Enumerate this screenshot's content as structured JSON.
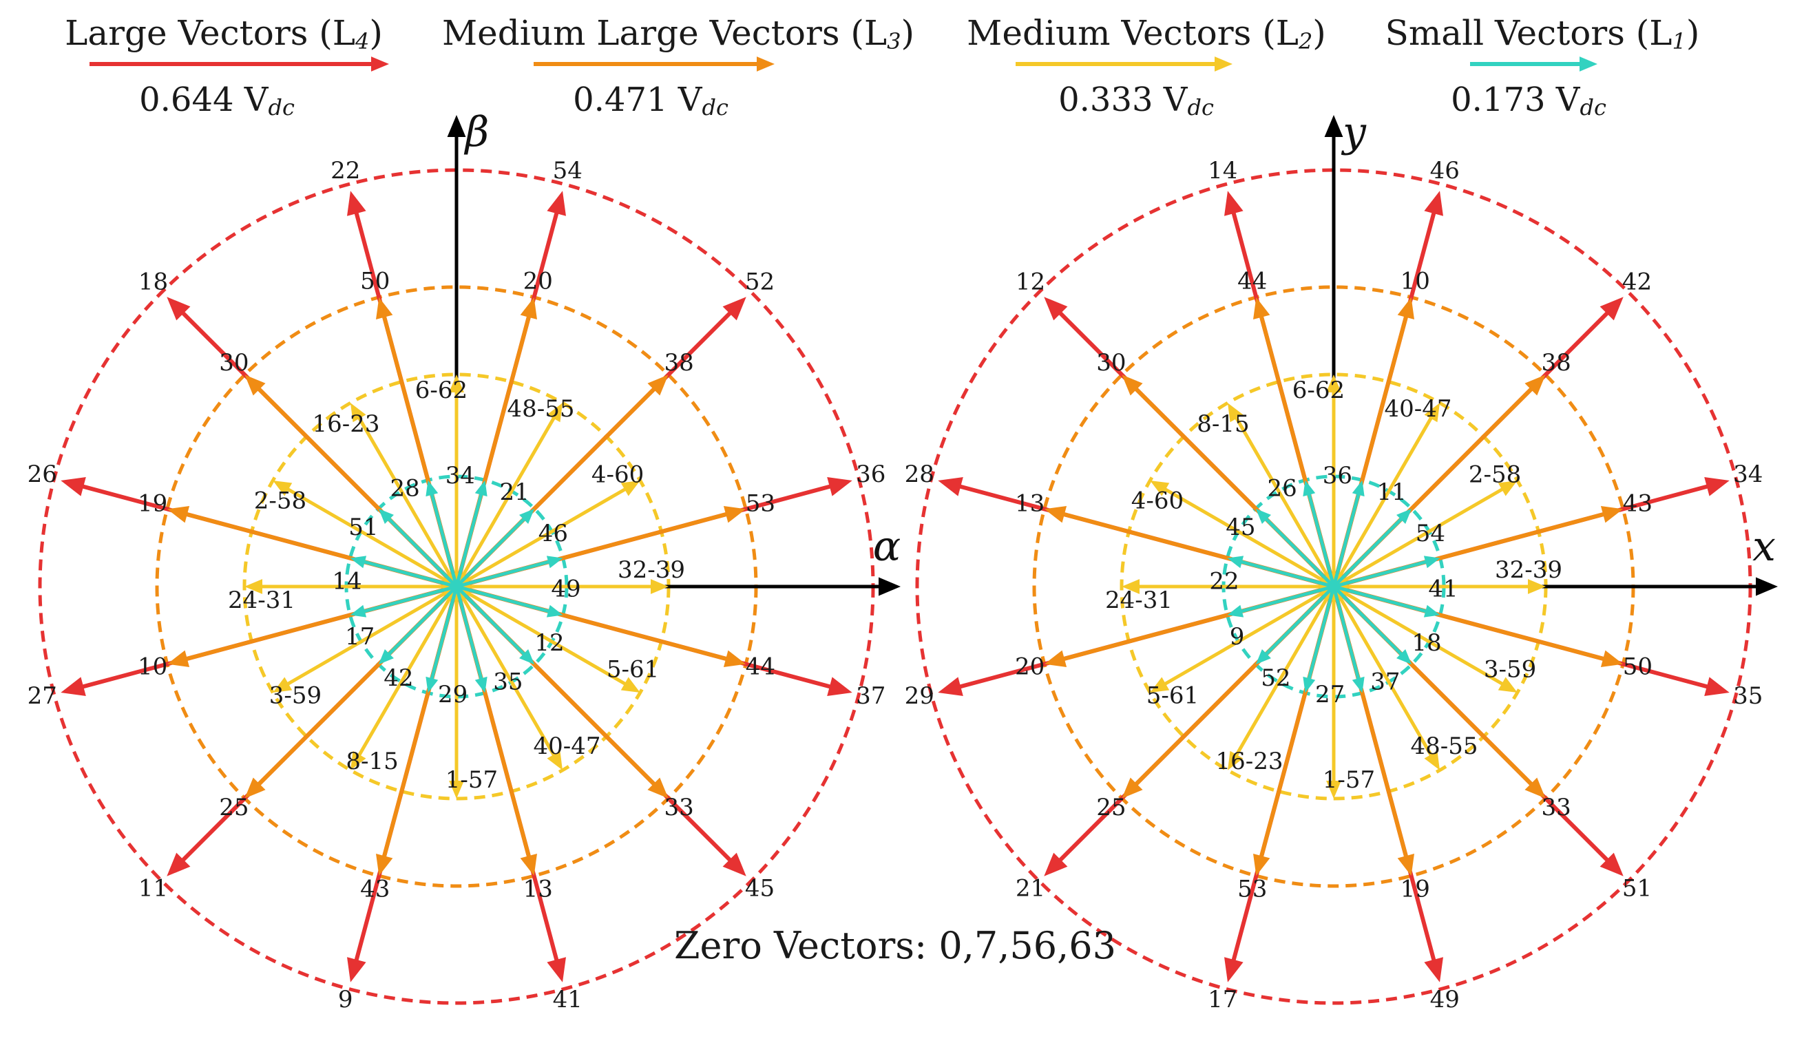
{
  "colors": {
    "large": "#e63232",
    "medium_large": "#f08c14",
    "medium": "#f5c828",
    "small": "#32d2c0",
    "axis": "#000000"
  },
  "legend": [
    {
      "key": "large",
      "title": "Large Vectors (L",
      "sub": "4",
      "tail": ")",
      "value": "0.644 V",
      "value_sub": "dc"
    },
    {
      "key": "medium_large",
      "title": "Medium Large Vectors (L",
      "sub": "3",
      "tail": ")",
      "value": "0.471 V",
      "value_sub": "dc"
    },
    {
      "key": "medium",
      "title": "Medium Vectors (L",
      "sub": "2",
      "tail": ")",
      "value": "0.333 V",
      "value_sub": "dc"
    },
    {
      "key": "small",
      "title": "Small Vectors (L",
      "sub": "1",
      "tail": ")",
      "value": "0.173 V",
      "value_sub": "dc"
    }
  ],
  "zero_vectors": "Zero Vectors: 0,7,56,63",
  "diagrams": [
    {
      "id": "alpha-beta",
      "x_axis": "α",
      "y_axis": "β",
      "large": [
        {
          "angle": 75,
          "label": "54"
        },
        {
          "angle": 105,
          "label": "22"
        },
        {
          "angle": 135,
          "label": "18"
        },
        {
          "angle": 165,
          "label": "26"
        },
        {
          "angle": 195,
          "label": "27"
        },
        {
          "angle": 225,
          "label": "11"
        },
        {
          "angle": 255,
          "label": "9"
        },
        {
          "angle": 285,
          "label": "41"
        },
        {
          "angle": 315,
          "label": "45"
        },
        {
          "angle": 345,
          "label": "37"
        },
        {
          "angle": 15,
          "label": "36"
        },
        {
          "angle": 45,
          "label": "52"
        }
      ],
      "medium_large": [
        {
          "angle": 75,
          "label": "20"
        },
        {
          "angle": 105,
          "label": "50"
        },
        {
          "angle": 135,
          "label": "30"
        },
        {
          "angle": 165,
          "label": "19"
        },
        {
          "angle": 195,
          "label": "10"
        },
        {
          "angle": 225,
          "label": "25"
        },
        {
          "angle": 255,
          "label": "43"
        },
        {
          "angle": 285,
          "label": "13"
        },
        {
          "angle": 315,
          "label": "33"
        },
        {
          "angle": 345,
          "label": "44"
        },
        {
          "angle": 15,
          "label": "53"
        },
        {
          "angle": 45,
          "label": "38"
        }
      ],
      "medium": [
        {
          "angle": 0,
          "label": "32-39"
        },
        {
          "angle": 30,
          "label": "4-60"
        },
        {
          "angle": 60,
          "label": "48-55"
        },
        {
          "angle": 90,
          "label": "6-62"
        },
        {
          "angle": 120,
          "label": "16-23"
        },
        {
          "angle": 150,
          "label": "2-58"
        },
        {
          "angle": 180,
          "label": "24-31"
        },
        {
          "angle": 210,
          "label": "3-59"
        },
        {
          "angle": 240,
          "label": "8-15"
        },
        {
          "angle": 270,
          "label": "1-57"
        },
        {
          "angle": 300,
          "label": "40-47"
        },
        {
          "angle": 330,
          "label": "5-61"
        }
      ],
      "small": [
        {
          "angle": 15,
          "label": "46"
        },
        {
          "angle": 45,
          "label": "21"
        },
        {
          "angle": 75,
          "label": "34"
        },
        {
          "angle": 105,
          "label": "28"
        },
        {
          "angle": 135,
          "label": "51"
        },
        {
          "angle": 165,
          "label": "14"
        },
        {
          "angle": 195,
          "label": "17"
        },
        {
          "angle": 225,
          "label": "42"
        },
        {
          "angle": 255,
          "label": "29"
        },
        {
          "angle": 285,
          "label": "35"
        },
        {
          "angle": 315,
          "label": "12"
        },
        {
          "angle": 345,
          "label": "49"
        }
      ]
    },
    {
      "id": "x-y",
      "x_axis": "x",
      "y_axis": "y",
      "large": [
        {
          "angle": 75,
          "label": "46"
        },
        {
          "angle": 105,
          "label": "14"
        },
        {
          "angle": 135,
          "label": "12"
        },
        {
          "angle": 165,
          "label": "28"
        },
        {
          "angle": 195,
          "label": "29"
        },
        {
          "angle": 225,
          "label": "21"
        },
        {
          "angle": 255,
          "label": "17"
        },
        {
          "angle": 285,
          "label": "49"
        },
        {
          "angle": 315,
          "label": "51"
        },
        {
          "angle": 345,
          "label": "35"
        },
        {
          "angle": 15,
          "label": "34"
        },
        {
          "angle": 45,
          "label": "42"
        }
      ],
      "medium_large": [
        {
          "angle": 75,
          "label": "10"
        },
        {
          "angle": 105,
          "label": "44"
        },
        {
          "angle": 135,
          "label": "30"
        },
        {
          "angle": 165,
          "label": "13"
        },
        {
          "angle": 195,
          "label": "20"
        },
        {
          "angle": 225,
          "label": "25"
        },
        {
          "angle": 255,
          "label": "53"
        },
        {
          "angle": 285,
          "label": "19"
        },
        {
          "angle": 315,
          "label": "33"
        },
        {
          "angle": 345,
          "label": "50"
        },
        {
          "angle": 15,
          "label": "43"
        },
        {
          "angle": 45,
          "label": "38"
        }
      ],
      "medium": [
        {
          "angle": 0,
          "label": "32-39"
        },
        {
          "angle": 30,
          "label": "2-58"
        },
        {
          "angle": 60,
          "label": "40-47"
        },
        {
          "angle": 90,
          "label": "6-62"
        },
        {
          "angle": 120,
          "label": "8-15"
        },
        {
          "angle": 150,
          "label": "4-60"
        },
        {
          "angle": 180,
          "label": "24-31"
        },
        {
          "angle": 210,
          "label": "5-61"
        },
        {
          "angle": 240,
          "label": "16-23"
        },
        {
          "angle": 270,
          "label": "1-57"
        },
        {
          "angle": 300,
          "label": "48-55"
        },
        {
          "angle": 330,
          "label": "3-59"
        }
      ],
      "small": [
        {
          "angle": 15,
          "label": "54"
        },
        {
          "angle": 45,
          "label": "11"
        },
        {
          "angle": 75,
          "label": "36"
        },
        {
          "angle": 105,
          "label": "26"
        },
        {
          "angle": 135,
          "label": "45"
        },
        {
          "angle": 165,
          "label": "22"
        },
        {
          "angle": 195,
          "label": "9"
        },
        {
          "angle": 225,
          "label": "52"
        },
        {
          "angle": 255,
          "label": "27"
        },
        {
          "angle": 285,
          "label": "37"
        },
        {
          "angle": 315,
          "label": "18"
        },
        {
          "angle": 345,
          "label": "41"
        }
      ]
    }
  ]
}
